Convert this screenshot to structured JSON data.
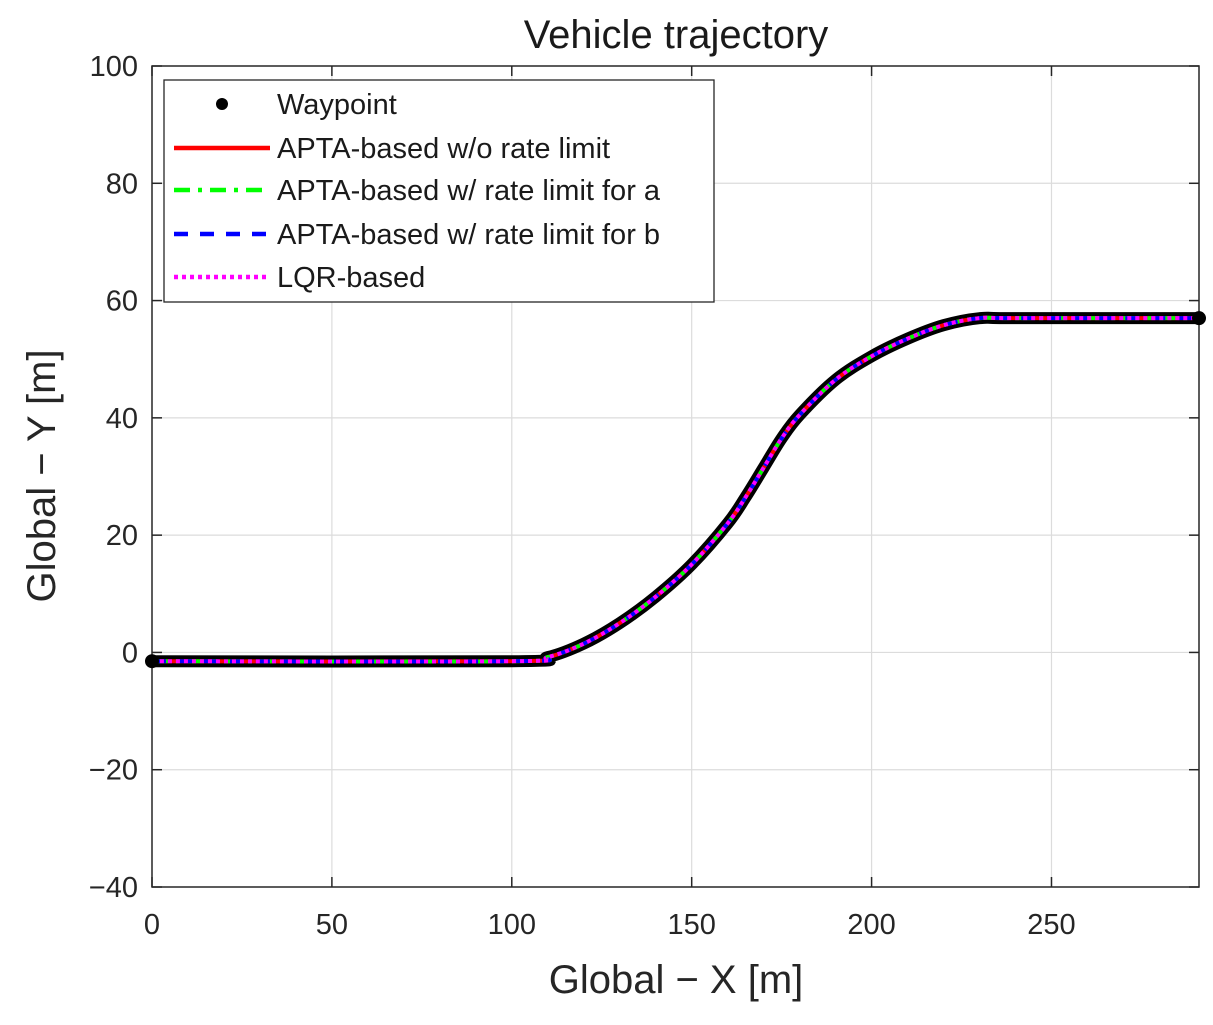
{
  "chart_data": {
    "type": "line",
    "title": "Vehicle trajectory",
    "xlabel": "Global − X [m]",
    "ylabel": "Global − Y [m]",
    "xlim": [
      0,
      291
    ],
    "ylim": [
      -40,
      100
    ],
    "xticks": [
      0,
      50,
      100,
      150,
      200,
      250
    ],
    "yticks": [
      -40,
      -20,
      0,
      20,
      40,
      60,
      80,
      100
    ],
    "xtick_labels": [
      "0",
      "50",
      "100",
      "150",
      "200",
      "250"
    ],
    "ytick_labels": [
      "−40",
      "−20",
      "0",
      "20",
      "40",
      "60",
      "80",
      "100"
    ],
    "grid": true,
    "legend_position": "top-left",
    "path": {
      "x": [
        0,
        100,
        110,
        120,
        130,
        140,
        150,
        160,
        165,
        170,
        175,
        180,
        190,
        200,
        210,
        220,
        230,
        240,
        291
      ],
      "y": [
        -1.5,
        -1.5,
        -0.8,
        1.5,
        5.0,
        9.5,
        15.0,
        22.0,
        26.5,
        31.5,
        36.5,
        40.5,
        46.5,
        50.5,
        53.5,
        55.8,
        57.0,
        57.0,
        57.0
      ]
    },
    "series": [
      {
        "name": "Waypoint",
        "color": "#000000",
        "style": "dot"
      },
      {
        "name": "APTA-based w/o rate limit",
        "color": "#ff0000",
        "style": "solid"
      },
      {
        "name": "APTA-based w/ rate limit for a",
        "color": "#00ff00",
        "style": "dash-dot"
      },
      {
        "name": "APTA-based w/ rate limit for b",
        "color": "#0000ff",
        "style": "dashed"
      },
      {
        "name": "LQR-based",
        "color": "#ff00ff",
        "style": "dotted"
      }
    ]
  }
}
